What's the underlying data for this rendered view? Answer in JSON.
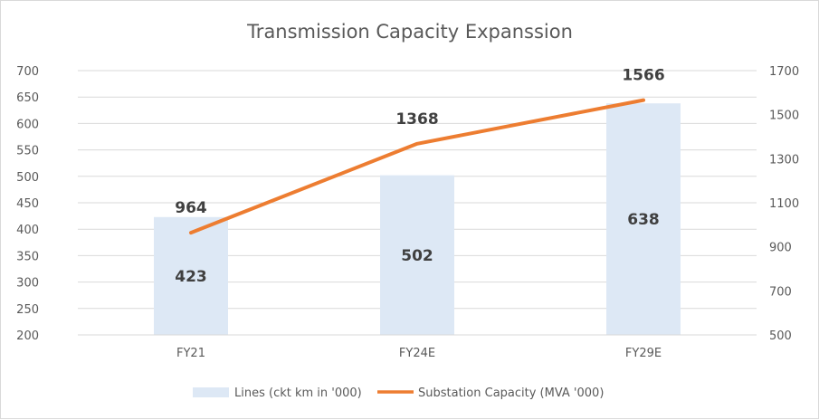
{
  "chart_data": {
    "type": "bar",
    "title": "Transmission Capacity Expanssion",
    "categories": [
      "FY21",
      "FY24E",
      "FY29E"
    ],
    "series": [
      {
        "name": "Lines (ckt km in '000)",
        "type": "bar",
        "axis": "left",
        "values": [
          423,
          502,
          638
        ],
        "labels": [
          "423",
          "502",
          "638"
        ],
        "color": "#dde8f5"
      },
      {
        "name": "Substation Capacity (MVA '000)",
        "type": "line",
        "axis": "right",
        "values": [
          964,
          1368,
          1566
        ],
        "labels": [
          "964",
          "1368",
          "1566"
        ],
        "color": "#ed7d31"
      }
    ],
    "y_left": {
      "ylim": [
        200,
        700
      ],
      "ticks": [
        "700",
        "650",
        "600",
        "550",
        "500",
        "450",
        "400",
        "350",
        "300",
        "250",
        "200"
      ],
      "tick_values": [
        700,
        650,
        600,
        550,
        500,
        450,
        400,
        350,
        300,
        250,
        200
      ]
    },
    "y_right": {
      "ylim": [
        500,
        1700
      ],
      "ticks": [
        "1700",
        "1500",
        "1300",
        "1100",
        "900",
        "700",
        "500"
      ],
      "tick_values": [
        1700,
        1500,
        1300,
        1100,
        900,
        700,
        500
      ]
    },
    "xlabel": "",
    "ylabel": "",
    "grid": true,
    "legend": "bottom",
    "gridline_color": "#d9d9d9",
    "text_color": "#595959"
  }
}
